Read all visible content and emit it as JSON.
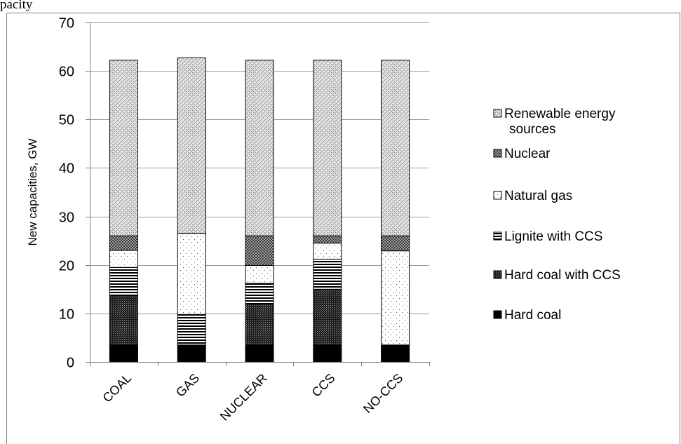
{
  "header_fragment": "pacity",
  "chart_data": {
    "type": "bar",
    "stacked": true,
    "categories": [
      "COAL",
      "GAS",
      "NUCLEAR",
      "CCS",
      "NO-CCS"
    ],
    "ylabel": "New capacities, GW",
    "xlabel": "",
    "ylim": [
      0,
      70
    ],
    "yticks": [
      0,
      10,
      20,
      30,
      40,
      50,
      60,
      70
    ],
    "grid": true,
    "legend_position": "right",
    "series": [
      {
        "name": "Hard coal",
        "pattern": "solid-black",
        "values": [
          3.5,
          3.5,
          3.5,
          3.5,
          3.5
        ]
      },
      {
        "name": "Hard coal with CCS",
        "pattern": "dense-dots",
        "values": [
          10.0,
          0.0,
          8.5,
          11.5,
          0.0
        ]
      },
      {
        "name": "Lignite with CCS",
        "pattern": "horizontal-lines",
        "values": [
          6.0,
          6.3,
          4.2,
          6.2,
          0.0
        ]
      },
      {
        "name": "Natural gas",
        "pattern": "sparse-dots",
        "values": [
          3.5,
          16.7,
          3.7,
          3.3,
          19.4
        ]
      },
      {
        "name": "Nuclear",
        "pattern": "crosshatch",
        "values": [
          3.0,
          0.0,
          6.1,
          1.5,
          3.1
        ]
      },
      {
        "name": "Renewable energy sources",
        "pattern": "light-dots",
        "values": [
          36.2,
          36.2,
          36.2,
          36.2,
          36.2
        ]
      }
    ],
    "legend_lines": [
      [
        "Renewable energy",
        "sources"
      ],
      [
        "Nuclear"
      ],
      [
        "Natural gas"
      ],
      [
        "Lignite with CCS"
      ],
      [
        "Hard coal with CCS"
      ],
      [
        "Hard coal"
      ]
    ]
  }
}
